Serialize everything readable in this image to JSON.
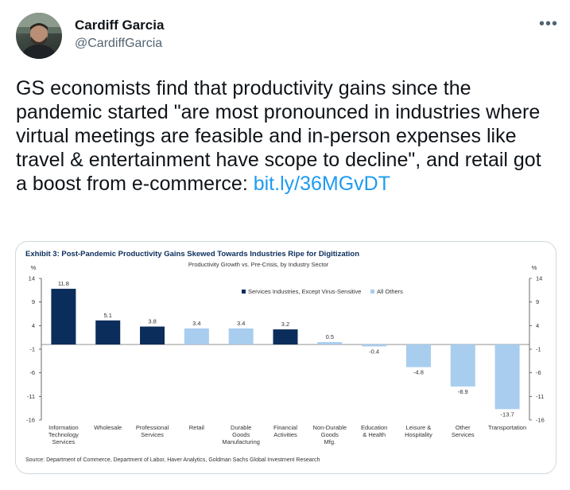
{
  "tweet": {
    "author_name": "Cardiff Garcia",
    "author_handle": "@CardiffGarcia",
    "more_icon": "more-dots-icon",
    "text": "GS economists find that productivity gains since the pandemic started \"are most pronounced in industries where virtual meetings are feasible and in-person expenses like travel & entertainment have scope to decline\", and retail got a boost from e-commerce:",
    "link": "bit.ly/36MGvDT"
  },
  "chart_data": {
    "type": "bar",
    "title": "Exhibit 3: Post-Pandemic Productivity Gains Skewed Towards Industries Ripe for Digitization",
    "subtitle": "Productivity Growth vs. Pre-Crisis, by Industry Sector",
    "unit_left": "%",
    "unit_right": "%",
    "ylim": [
      -16,
      14
    ],
    "yticks": [
      14,
      9,
      4,
      -1,
      -6,
      -11,
      -16
    ],
    "categories": [
      [
        "Information",
        "Technology",
        "Services"
      ],
      [
        "Wholesale"
      ],
      [
        "Professional",
        "Services"
      ],
      [
        "Retail"
      ],
      [
        "Durable",
        "Goods",
        "Manufacturing"
      ],
      [
        "Financial",
        "Activities"
      ],
      [
        "Non-Durable",
        "Goods",
        "Mfg."
      ],
      [
        "Education",
        "& Health"
      ],
      [
        "Leisure &",
        "Hospitality"
      ],
      [
        "Other",
        "Services"
      ],
      [
        "Transportation"
      ]
    ],
    "values": [
      11.8,
      5.1,
      3.8,
      3.4,
      3.4,
      3.2,
      0.5,
      -0.4,
      -4.8,
      -8.9,
      -13.7
    ],
    "value_labels": [
      "11.8",
      "5.1",
      "3.8",
      "3.4",
      "3.4",
      "3.2",
      "0.5",
      "-0.4",
      "-4.8",
      "-8.9",
      "-13.7"
    ],
    "group": [
      0,
      0,
      0,
      1,
      1,
      0,
      1,
      1,
      1,
      1,
      1
    ],
    "series": [
      {
        "name": "Services Industries, Except Virus-Sensitive",
        "color": "#0b2d5b"
      },
      {
        "name": "All Others",
        "color": "#a8cdef"
      }
    ],
    "legend_position": "top-right",
    "grid": false,
    "source": "Source: Department of Commerce, Department of Labor, Haver Analytics, Goldman Sachs Global Investment Research"
  }
}
